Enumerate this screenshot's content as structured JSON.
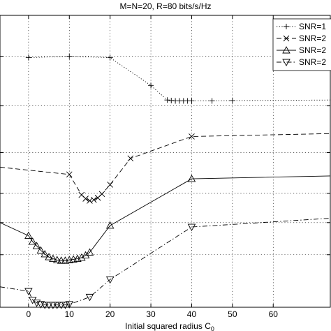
{
  "chart_data": {
    "type": "line",
    "title": "M=N=20, R=80 bits/s/Hz",
    "xlabel": "Initial squared radius C",
    "xlabel_subscript": "0",
    "ylabel": "",
    "xlim": [
      -7,
      74
    ],
    "ylim": [
      0,
      10
    ],
    "xticks": [
      0,
      10,
      20,
      30,
      40,
      50,
      60
    ],
    "yticks": [
      0,
      1.8,
      2.9,
      3.9,
      5.3,
      6.9,
      8.6,
      10
    ],
    "grid": true,
    "legend_position": "top-right",
    "series": [
      {
        "name": "SNR=1",
        "marker": "plus",
        "linestyle": "dotted",
        "x": [
          0,
          10,
          20,
          30,
          34,
          35,
          36,
          37,
          38,
          39,
          40,
          45,
          50,
          74
        ],
        "y": [
          8.55,
          8.6,
          8.55,
          7.6,
          7.1,
          7.08,
          7.07,
          7.07,
          7.07,
          7.07,
          7.07,
          7.07,
          7.08,
          7.1
        ]
      },
      {
        "name": "SNR=2",
        "marker": "x",
        "linestyle": "dashed",
        "x": [
          -7,
          10,
          13,
          14,
          15,
          16,
          17,
          18,
          20,
          25,
          40,
          74
        ],
        "y": [
          4.8,
          4.55,
          3.85,
          3.72,
          3.65,
          3.68,
          3.75,
          3.88,
          4.2,
          5.1,
          5.85,
          5.95
        ]
      },
      {
        "name": "SNR=2",
        "marker": "triangle-up",
        "linestyle": "solid",
        "x": [
          -7,
          0,
          1,
          2,
          3,
          4,
          5,
          6,
          7,
          8,
          9,
          10,
          11,
          12,
          13,
          14,
          15,
          20,
          40,
          74
        ],
        "y": [
          2.9,
          2.45,
          2.25,
          2.1,
          1.95,
          1.82,
          1.72,
          1.66,
          1.62,
          1.6,
          1.6,
          1.62,
          1.64,
          1.66,
          1.7,
          1.78,
          1.88,
          2.8,
          4.4,
          4.5
        ]
      },
      {
        "name": "SNR=2",
        "marker": "triangle-down",
        "linestyle": "dashdot",
        "x": [
          -7,
          0,
          1,
          2,
          3,
          4,
          5,
          6,
          7,
          8,
          9,
          10,
          15,
          20,
          40,
          74
        ],
        "y": [
          0.7,
          0.55,
          0.25,
          0.15,
          0.1,
          0.08,
          0.08,
          0.08,
          0.08,
          0.08,
          0.08,
          0.1,
          0.35,
          0.95,
          2.75,
          3.05
        ]
      }
    ]
  }
}
